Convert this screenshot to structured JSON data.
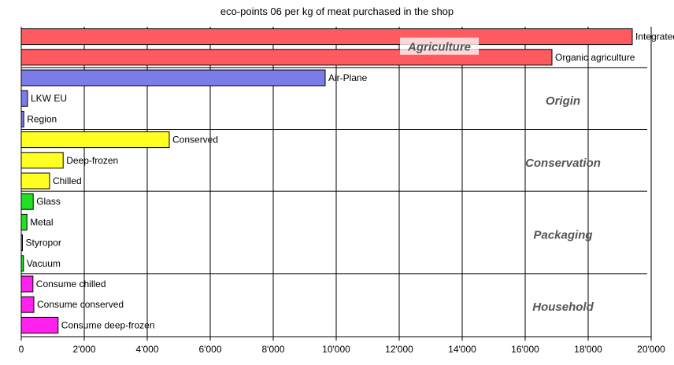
{
  "chart_data": {
    "type": "bar",
    "orientation": "horizontal",
    "title": "eco-points 06 per kg of meat purchased in the shop",
    "xlabel": "",
    "ylabel": "",
    "xlim": [
      0,
      20000
    ],
    "x_ticks": [
      0,
      2000,
      4000,
      6000,
      8000,
      10000,
      12000,
      14000,
      16000,
      18000,
      20000
    ],
    "x_tick_labels": [
      "0",
      "2'000",
      "4'000",
      "6'000",
      "8'000",
      "10'000",
      "12'000",
      "14'000",
      "16'000",
      "18'000",
      "20'000"
    ],
    "grid": true,
    "groups": [
      {
        "name": "Agriculture",
        "color": "#ff5a5f",
        "highlighted": true,
        "bars": [
          {
            "label": "Integrated agriculture",
            "value": 19400
          },
          {
            "label": "Organic agriculture",
            "value": 16850
          }
        ]
      },
      {
        "name": "Origin",
        "color": "#7b7bea",
        "bars": [
          {
            "label": "Air-Plane",
            "value": 9650
          },
          {
            "label": "LKW EU",
            "value": 200
          },
          {
            "label": "Region",
            "value": 80
          }
        ]
      },
      {
        "name": "Conservation",
        "color": "#ffff22",
        "bars": [
          {
            "label": "Conserved",
            "value": 4700
          },
          {
            "label": "Deep-frozen",
            "value": 1330
          },
          {
            "label": "Chilled",
            "value": 900
          }
        ]
      },
      {
        "name": "Packaging",
        "color": "#22e022",
        "bars": [
          {
            "label": "Glass",
            "value": 380
          },
          {
            "label": "Metal",
            "value": 180
          },
          {
            "label": "Styropor",
            "value": 20
          },
          {
            "label": "Vacuum",
            "value": 70
          }
        ]
      },
      {
        "name": "Household",
        "color": "#ff22ee",
        "bars": [
          {
            "label": "Consume chilled",
            "value": 370
          },
          {
            "label": "Consume conserved",
            "value": 400
          },
          {
            "label": "Consume deep-frozen",
            "value": 1170
          }
        ]
      }
    ]
  }
}
